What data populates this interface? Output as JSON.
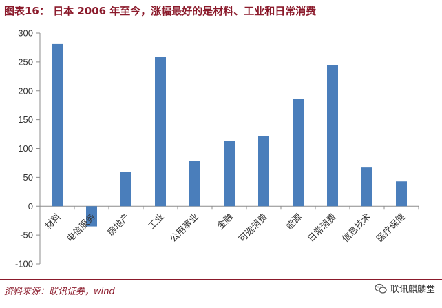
{
  "header": {
    "title": "图表16：  日本 2006 年至今，涨幅最好的是材料、工业和日常消费"
  },
  "footer": {
    "source": "资料来源：联讯证券，wind",
    "brand": "联讯麒麟堂"
  },
  "colors": {
    "bar": "#4a7ebb",
    "accent": "#8b1a2b"
  },
  "chart_data": {
    "type": "bar",
    "categories": [
      "材料",
      "电信服务",
      "房地产",
      "工业",
      "公用事业",
      "金融",
      "可选消费",
      "能源",
      "日常消费",
      "信息技术",
      "医疗保健"
    ],
    "values": [
      281,
      -35,
      60,
      259,
      78,
      113,
      121,
      186,
      245,
      67,
      43
    ],
    "ylim": [
      -100,
      300
    ],
    "yticks": [
      300,
      250,
      200,
      150,
      100,
      50,
      0,
      -50,
      -100
    ],
    "grid": false,
    "legend": "none"
  }
}
